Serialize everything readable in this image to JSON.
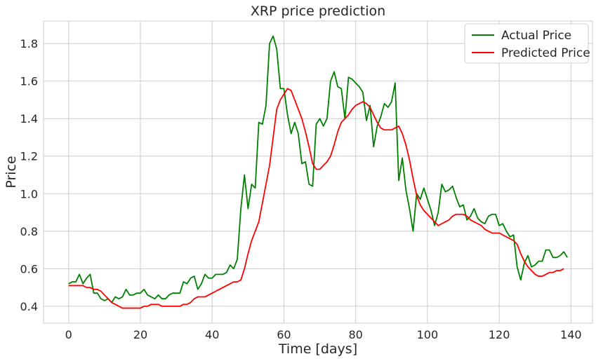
{
  "chart_data": {
    "type": "line",
    "title": "XRP price prediction",
    "xlabel": "Time [days]",
    "ylabel": "Price",
    "xlim": [
      -7,
      146
    ],
    "ylim": [
      0.31,
      1.92
    ],
    "xticks": [
      0,
      20,
      40,
      60,
      80,
      100,
      120,
      140
    ],
    "yticks": [
      0.4,
      0.6,
      0.8,
      1.0,
      1.2,
      1.4,
      1.6,
      1.8
    ],
    "ytick_labels": [
      "0.4",
      "0.6",
      "0.8",
      "1.0",
      "1.2",
      "1.4",
      "1.6",
      "1.8"
    ],
    "grid": true,
    "legend_position": "top-right",
    "series": [
      {
        "name": "Actual Price",
        "color": "#008000",
        "values": [
          0.52,
          0.53,
          0.53,
          0.57,
          0.52,
          0.55,
          0.57,
          0.47,
          0.47,
          0.44,
          0.43,
          0.44,
          0.42,
          0.45,
          0.44,
          0.45,
          0.49,
          0.46,
          0.46,
          0.47,
          0.47,
          0.49,
          0.46,
          0.45,
          0.44,
          0.46,
          0.44,
          0.44,
          0.46,
          0.47,
          0.47,
          0.47,
          0.53,
          0.52,
          0.55,
          0.56,
          0.49,
          0.52,
          0.57,
          0.55,
          0.55,
          0.57,
          0.57,
          0.57,
          0.58,
          0.62,
          0.6,
          0.65,
          0.92,
          1.1,
          0.92,
          1.05,
          1.03,
          1.38,
          1.37,
          1.47,
          1.8,
          1.84,
          1.77,
          1.56,
          1.56,
          1.42,
          1.32,
          1.38,
          1.32,
          1.16,
          1.17,
          1.05,
          1.04,
          1.37,
          1.4,
          1.36,
          1.4,
          1.6,
          1.65,
          1.57,
          1.56,
          1.4,
          1.62,
          1.61,
          1.59,
          1.57,
          1.54,
          1.39,
          1.47,
          1.25,
          1.36,
          1.41,
          1.48,
          1.46,
          1.49,
          1.59,
          1.07,
          1.19,
          1.02,
          0.92,
          0.8,
          1.0,
          0.97,
          1.03,
          0.97,
          0.91,
          0.83,
          0.9,
          1.05,
          1.01,
          1.02,
          1.04,
          0.98,
          0.93,
          0.94,
          0.86,
          0.88,
          0.92,
          0.87,
          0.85,
          0.84,
          0.88,
          0.89,
          0.89,
          0.83,
          0.84,
          0.8,
          0.77,
          0.78,
          0.61,
          0.54,
          0.63,
          0.67,
          0.61,
          0.62,
          0.64,
          0.64,
          0.7,
          0.7,
          0.66,
          0.66,
          0.67,
          0.69,
          0.66
        ]
      },
      {
        "name": "Predicted Price",
        "color": "#ff0000",
        "values": [
          0.51,
          0.51,
          0.51,
          0.51,
          0.51,
          0.5,
          0.5,
          0.49,
          0.49,
          0.48,
          0.46,
          0.44,
          0.42,
          0.41,
          0.4,
          0.39,
          0.39,
          0.39,
          0.39,
          0.39,
          0.39,
          0.4,
          0.4,
          0.41,
          0.41,
          0.41,
          0.4,
          0.4,
          0.4,
          0.4,
          0.4,
          0.4,
          0.41,
          0.41,
          0.42,
          0.44,
          0.45,
          0.45,
          0.45,
          0.46,
          0.47,
          0.48,
          0.49,
          0.5,
          0.51,
          0.52,
          0.53,
          0.53,
          0.54,
          0.6,
          0.68,
          0.75,
          0.8,
          0.85,
          0.95,
          1.05,
          1.15,
          1.3,
          1.45,
          1.5,
          1.53,
          1.56,
          1.55,
          1.5,
          1.45,
          1.4,
          1.33,
          1.25,
          1.16,
          1.13,
          1.13,
          1.15,
          1.17,
          1.2,
          1.26,
          1.33,
          1.38,
          1.4,
          1.42,
          1.45,
          1.47,
          1.48,
          1.49,
          1.48,
          1.46,
          1.42,
          1.38,
          1.35,
          1.34,
          1.34,
          1.34,
          1.35,
          1.36,
          1.32,
          1.26,
          1.18,
          1.08,
          0.99,
          0.94,
          0.91,
          0.89,
          0.87,
          0.85,
          0.83,
          0.84,
          0.85,
          0.86,
          0.88,
          0.89,
          0.89,
          0.89,
          0.88,
          0.86,
          0.85,
          0.84,
          0.83,
          0.81,
          0.8,
          0.79,
          0.79,
          0.79,
          0.78,
          0.77,
          0.76,
          0.75,
          0.73,
          0.68,
          0.64,
          0.61,
          0.59,
          0.57,
          0.56,
          0.56,
          0.57,
          0.58,
          0.58,
          0.59,
          0.59,
          0.6
        ]
      }
    ]
  }
}
